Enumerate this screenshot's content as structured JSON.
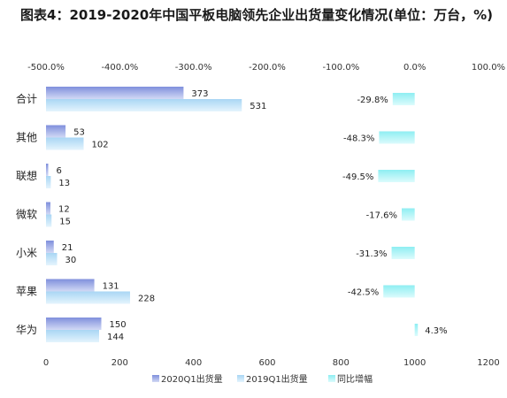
{
  "chart_data": {
    "type": "bar",
    "orientation": "horizontal",
    "title": "图表4：2019-2020年中国平板电脑领先企业出货量变化情况(单位：万台，%)",
    "categories": [
      "合计",
      "其他",
      "联想",
      "微软",
      "小米",
      "苹果",
      "华为"
    ],
    "series": [
      {
        "name": "2020Q1出货量",
        "axis": "bottom",
        "color": "#9aa8e6",
        "values": [
          373,
          53,
          6,
          12,
          21,
          131,
          150
        ]
      },
      {
        "name": "2019Q1出货量",
        "axis": "bottom",
        "color": "#bde0f7",
        "values": [
          531,
          102,
          13,
          15,
          30,
          228,
          144
        ]
      },
      {
        "name": "同比增幅",
        "axis": "top",
        "color": "#aef3f5",
        "values": [
          -29.8,
          -48.3,
          -49.5,
          -17.6,
          -31.3,
          -42.5,
          4.3
        ]
      }
    ],
    "bottom_axis": {
      "range": [
        0,
        1200
      ],
      "ticks": [
        0,
        200,
        400,
        600,
        800,
        1000,
        1200
      ]
    },
    "top_axis": {
      "range": [
        -500,
        100
      ],
      "ticks": [
        -500,
        -400,
        -300,
        -200,
        -100,
        0,
        100
      ],
      "tick_labels": [
        "-500.0%",
        "-400.0%",
        "-300.0%",
        "-200.0%",
        "-100.0%",
        "0.0%",
        "100.0%"
      ]
    },
    "growth_labels": [
      "-29.8%",
      "-48.3%",
      "-49.5%",
      "-17.6%",
      "-31.3%",
      "-42.5%",
      "4.3%"
    ],
    "legend": {
      "position": "bottom"
    },
    "grid": false
  }
}
